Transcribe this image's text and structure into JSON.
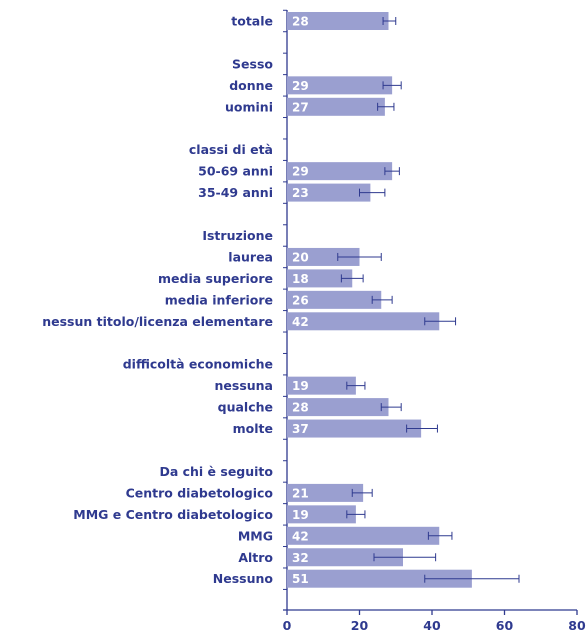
{
  "colors": {
    "bar": "#9a9fd0",
    "text": "#2f3a8f",
    "axis": "#2f3a8f",
    "error": "#2f3a8f",
    "value_text": "#ffffff"
  },
  "chart_data": {
    "type": "bar",
    "orientation": "horizontal",
    "xlim": [
      0,
      80
    ],
    "x_ticks": [
      "0",
      "20",
      "40",
      "60",
      "80"
    ],
    "grid": false,
    "rows": [
      {
        "label": "totale",
        "value": 28,
        "err_low": 26.5,
        "err_high": 30
      },
      {
        "label": "Sesso",
        "header": true
      },
      {
        "label": "donne",
        "value": 29,
        "err_low": 26.5,
        "err_high": 31.5
      },
      {
        "label": "uomini",
        "value": 27,
        "err_low": 25,
        "err_high": 29.5
      },
      {
        "label": "classi di età",
        "header": true
      },
      {
        "label": "50-69 anni",
        "value": 29,
        "err_low": 27,
        "err_high": 31
      },
      {
        "label": "35-49 anni",
        "value": 23,
        "err_low": 20,
        "err_high": 27
      },
      {
        "label": "Istruzione",
        "header": true
      },
      {
        "label": "laurea",
        "value": 20,
        "err_low": 14,
        "err_high": 26
      },
      {
        "label": "media superiore",
        "value": 18,
        "err_low": 15,
        "err_high": 21
      },
      {
        "label": "media inferiore",
        "value": 26,
        "err_low": 23.5,
        "err_high": 29
      },
      {
        "label": "nessun titolo/licenza elementare",
        "value": 42,
        "err_low": 38,
        "err_high": 46.5
      },
      {
        "label": "difficoltà economiche",
        "header": true
      },
      {
        "label": "nessuna",
        "value": 19,
        "err_low": 16.5,
        "err_high": 21.5
      },
      {
        "label": "qualche",
        "value": 28,
        "err_low": 26,
        "err_high": 31.5
      },
      {
        "label": "molte",
        "value": 37,
        "err_low": 33,
        "err_high": 41.5
      },
      {
        "label": "Da chi è seguito",
        "header": true
      },
      {
        "label": "Centro diabetologico",
        "value": 21,
        "err_low": 18,
        "err_high": 23.5
      },
      {
        "label": "MMG e Centro diabetologico",
        "value": 19,
        "err_low": 16.5,
        "err_high": 21.5
      },
      {
        "label": "MMG",
        "value": 42,
        "err_low": 39,
        "err_high": 45.5
      },
      {
        "label": "Altro",
        "value": 32,
        "err_low": 24,
        "err_high": 41
      },
      {
        "label": "Nessuno",
        "value": 51,
        "err_low": 38,
        "err_high": 64
      }
    ]
  }
}
